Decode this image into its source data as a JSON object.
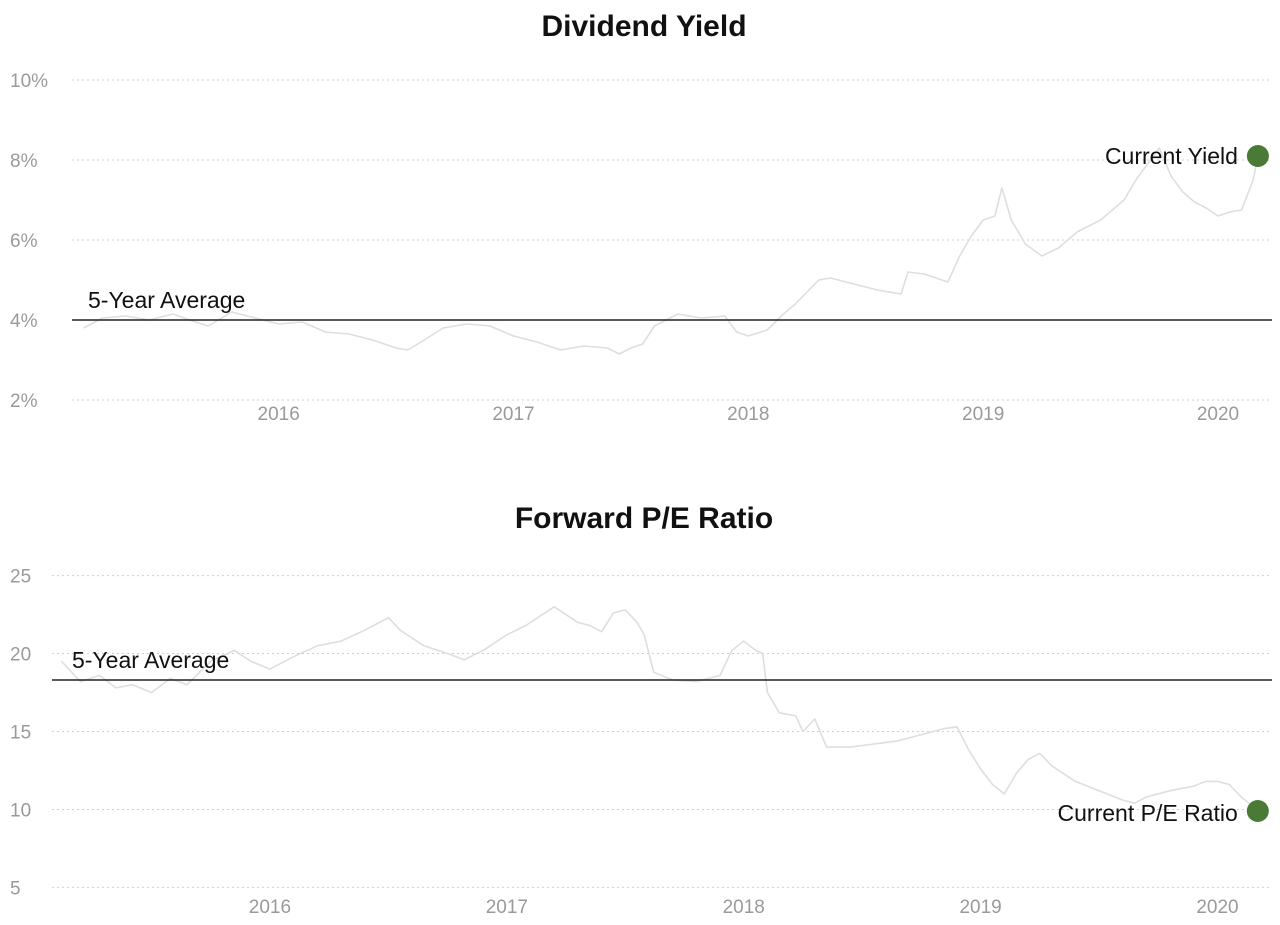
{
  "colors": {
    "series_line": "#dedede",
    "average_line": "#222222",
    "current_marker": "#4a7a35",
    "grid": "#cfcfcf",
    "tick_text": "#9a9a9a",
    "title_text": "#111111"
  },
  "chart_data": [
    {
      "type": "line",
      "title": "Dividend Yield",
      "xlabel": "",
      "ylabel": "",
      "y_unit": "%",
      "y_ticks": [
        "2%",
        "4%",
        "6%",
        "8%",
        "10%"
      ],
      "y_tick_values": [
        2,
        4,
        6,
        8,
        10
      ],
      "x_ticks": [
        "2016",
        "2017",
        "2018",
        "2019",
        "2020"
      ],
      "x_tick_values": [
        2016,
        2017,
        2018,
        2019,
        2020
      ],
      "xlim": [
        2015.12,
        2020.23
      ],
      "ylim": [
        1.5,
        10.5
      ],
      "grid": true,
      "legend": "none",
      "average": {
        "label": "5-Year Average",
        "value": 4.0
      },
      "current": {
        "label": "Current Yield",
        "x": 2020.17,
        "y": 8.1
      },
      "series": [
        {
          "x": [
            2015.17,
            2015.25,
            2015.35,
            2015.45,
            2015.55,
            2015.62,
            2015.7,
            2015.8,
            2015.9,
            2016.0,
            2016.1,
            2016.2,
            2016.3,
            2016.4,
            2016.5,
            2016.55,
            2016.62,
            2016.7,
            2016.8,
            2016.9,
            2017.0,
            2017.1,
            2017.2,
            2017.3,
            2017.4,
            2017.45,
            2017.5,
            2017.55,
            2017.6,
            2017.7,
            2017.8,
            2017.9,
            2017.95,
            2018.0,
            2018.08,
            2018.15,
            2018.2,
            2018.25,
            2018.3,
            2018.35,
            2018.45,
            2018.55,
            2018.65,
            2018.68,
            2018.75,
            2018.85,
            2018.9,
            2018.95,
            2019.0,
            2019.05,
            2019.08,
            2019.12,
            2019.18,
            2019.25,
            2019.32,
            2019.4,
            2019.5,
            2019.6,
            2019.65,
            2019.7,
            2019.75,
            2019.8,
            2019.85,
            2019.9,
            2019.95,
            2020.0,
            2020.05,
            2020.1,
            2020.15,
            2020.17
          ],
          "y": [
            3.8,
            4.05,
            4.1,
            4.0,
            4.15,
            4.0,
            3.85,
            4.2,
            4.05,
            3.9,
            3.95,
            3.7,
            3.65,
            3.5,
            3.3,
            3.25,
            3.5,
            3.8,
            3.9,
            3.85,
            3.6,
            3.45,
            3.25,
            3.35,
            3.3,
            3.15,
            3.3,
            3.4,
            3.85,
            4.15,
            4.05,
            4.1,
            3.7,
            3.6,
            3.75,
            4.15,
            4.4,
            4.7,
            5.0,
            5.05,
            4.9,
            4.75,
            4.65,
            5.2,
            5.15,
            4.95,
            5.6,
            6.1,
            6.5,
            6.6,
            7.3,
            6.5,
            5.9,
            5.6,
            5.8,
            6.2,
            6.5,
            7.0,
            7.5,
            7.9,
            8.3,
            7.6,
            7.2,
            6.95,
            6.8,
            6.6,
            6.7,
            6.75,
            7.5,
            8.1
          ]
        }
      ]
    },
    {
      "type": "line",
      "title": "Forward P/E Ratio",
      "xlabel": "",
      "ylabel": "",
      "y_ticks": [
        "5",
        "10",
        "15",
        "20",
        "25"
      ],
      "y_tick_values": [
        5,
        10,
        15,
        20,
        25
      ],
      "x_ticks": [
        "2016",
        "2017",
        "2018",
        "2019",
        "2020"
      ],
      "x_tick_values": [
        2016,
        2017,
        2018,
        2019,
        2020
      ],
      "xlim": [
        2015.08,
        2020.23
      ],
      "ylim": [
        4.0,
        26.0
      ],
      "grid": true,
      "legend": "none",
      "average": {
        "label": "5-Year Average",
        "value": 18.3
      },
      "current": {
        "label": "Current P/E Ratio",
        "x": 2020.17,
        "y": 9.9
      },
      "series": [
        {
          "x": [
            2015.12,
            2015.2,
            2015.28,
            2015.35,
            2015.42,
            2015.5,
            2015.58,
            2015.65,
            2015.75,
            2015.85,
            2015.92,
            2016.0,
            2016.1,
            2016.2,
            2016.3,
            2016.4,
            2016.5,
            2016.55,
            2016.65,
            2016.75,
            2016.82,
            2016.9,
            2017.0,
            2017.08,
            2017.15,
            2017.2,
            2017.3,
            2017.35,
            2017.4,
            2017.45,
            2017.5,
            2017.55,
            2017.58,
            2017.62,
            2017.7,
            2017.8,
            2017.9,
            2017.95,
            2018.0,
            2018.05,
            2018.08,
            2018.1,
            2018.15,
            2018.22,
            2018.25,
            2018.3,
            2018.35,
            2018.45,
            2018.55,
            2018.65,
            2018.75,
            2018.85,
            2018.9,
            2018.95,
            2019.0,
            2019.05,
            2019.1,
            2019.15,
            2019.2,
            2019.25,
            2019.3,
            2019.4,
            2019.5,
            2019.6,
            2019.65,
            2019.7,
            2019.8,
            2019.9,
            2019.95,
            2020.0,
            2020.05,
            2020.1,
            2020.15,
            2020.17
          ],
          "y": [
            19.5,
            18.2,
            18.6,
            17.8,
            18.0,
            17.5,
            18.4,
            18.0,
            19.5,
            20.2,
            19.5,
            19.0,
            19.8,
            20.5,
            20.8,
            21.5,
            22.3,
            21.5,
            20.5,
            20.0,
            19.6,
            20.2,
            21.2,
            21.8,
            22.5,
            23.0,
            22.0,
            21.8,
            21.4,
            22.6,
            22.8,
            22.0,
            21.2,
            18.8,
            18.3,
            18.2,
            18.6,
            20.2,
            20.8,
            20.2,
            20.0,
            17.5,
            16.2,
            16.0,
            15.0,
            15.8,
            14.0,
            14.0,
            14.2,
            14.4,
            14.8,
            15.2,
            15.3,
            13.8,
            12.6,
            11.6,
            11.0,
            12.3,
            13.2,
            13.6,
            12.8,
            11.8,
            11.2,
            10.6,
            10.4,
            10.8,
            11.2,
            11.5,
            11.8,
            11.8,
            11.6,
            10.8,
            10.2,
            9.9
          ]
        }
      ]
    }
  ]
}
